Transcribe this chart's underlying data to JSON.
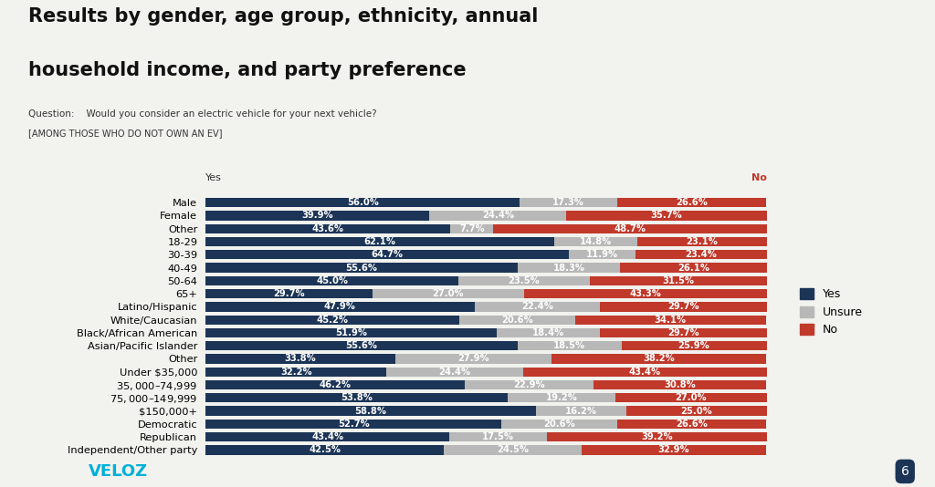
{
  "title_line1": "Results by gender, age group, ethnicity, annual",
  "title_line2": "household income, and party preference",
  "question": "Question:    Would you consider an electric vehicle for your next vehicle?",
  "subquestion": "[AMONG THOSE WHO DO NOT OWN AN EV]",
  "categories": [
    "Male",
    "Female",
    "Other",
    "18-29",
    "30-39",
    "40-49",
    "50-64",
    "65+",
    "Latino/Hispanic",
    "White/Caucasian",
    "Black/African American",
    "Asian/Pacific Islander",
    "Other",
    "Under $35,000",
    "$35,000 – $74,999",
    "$75,000 – $149,999",
    "$150,000+",
    "Democratic",
    "Republican",
    "Independent/Other party"
  ],
  "yes": [
    56.0,
    39.9,
    43.6,
    62.1,
    64.7,
    55.6,
    45.0,
    29.7,
    47.9,
    45.2,
    51.9,
    55.6,
    33.8,
    32.2,
    46.2,
    53.8,
    58.8,
    52.7,
    43.4,
    42.5
  ],
  "unsure": [
    17.3,
    24.4,
    7.7,
    14.8,
    11.9,
    18.3,
    23.5,
    27.0,
    22.4,
    20.6,
    18.4,
    18.5,
    27.9,
    24.4,
    22.9,
    19.2,
    16.2,
    20.6,
    17.5,
    24.5
  ],
  "no": [
    26.6,
    35.7,
    48.7,
    23.1,
    23.4,
    26.1,
    31.5,
    43.3,
    29.7,
    34.1,
    29.7,
    25.9,
    38.2,
    43.4,
    30.8,
    27.0,
    25.0,
    26.6,
    39.2,
    32.9
  ],
  "color_yes": "#1c3557",
  "color_unsure": "#b8b8b8",
  "color_no": "#c0392b",
  "background_color": "#f2f2ee",
  "bar_height": 0.72,
  "label_fontsize": 7.2,
  "category_fontsize": 8.2
}
